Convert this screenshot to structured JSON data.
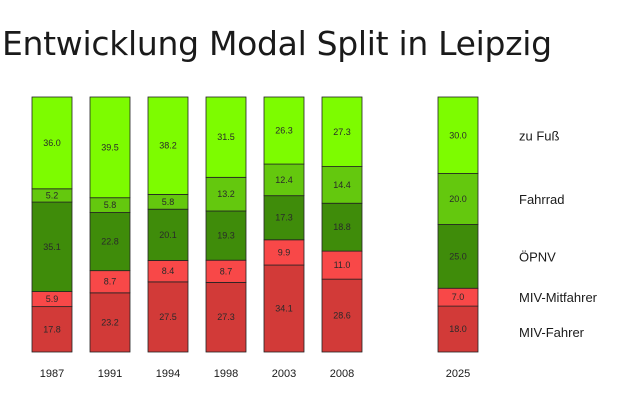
{
  "chart_data": {
    "type": "bar",
    "stacked": true,
    "title": "Entwicklung Modal Split in Leipzig",
    "categories": [
      "1987",
      "1991",
      "1994",
      "1998",
      "2003",
      "2008",
      "2025"
    ],
    "series": [
      {
        "name": "MIV-Fahrer",
        "color": "#d23a38",
        "values": [
          17.8,
          23.2,
          27.5,
          27.3,
          34.1,
          28.6,
          18.0
        ]
      },
      {
        "name": "MIV-Mitfahrer",
        "color": "#f84848",
        "values": [
          5.9,
          8.7,
          8.4,
          8.7,
          9.9,
          11.0,
          7.0
        ]
      },
      {
        "name": "ÖPNV",
        "color": "#3f8c0a",
        "values": [
          35.1,
          22.8,
          20.1,
          19.3,
          17.3,
          18.8,
          25.0
        ]
      },
      {
        "name": "Fahrrad",
        "color": "#64c80e",
        "values": [
          5.2,
          5.8,
          5.8,
          13.2,
          12.4,
          14.4,
          20.0
        ]
      },
      {
        "name": "zu Fuß",
        "color": "#7dfc00",
        "values": [
          36.0,
          39.5,
          38.2,
          31.5,
          26.3,
          27.3,
          30.0
        ]
      }
    ],
    "value_labels": [
      [
        "17.8",
        "23.2",
        "27.5",
        "27.3",
        "34.1",
        "28.6",
        "18.0"
      ],
      [
        "5.9",
        "8.7",
        "8.4",
        "8.7",
        "9.9",
        "11.0",
        "7.0"
      ],
      [
        "35.1",
        "22.8",
        "20.1",
        "19.3",
        "17.3",
        "18.8",
        "25.0"
      ],
      [
        "5.2",
        "5.8",
        "5.8",
        "13.2",
        "12.4",
        "14.4",
        "20.0"
      ],
      [
        "36.0",
        "39.5",
        "38.2",
        "31.5",
        "26.3",
        "27.3",
        "30.0"
      ]
    ],
    "ylim": [
      0,
      100
    ],
    "grid": false,
    "legend_position": "right"
  }
}
